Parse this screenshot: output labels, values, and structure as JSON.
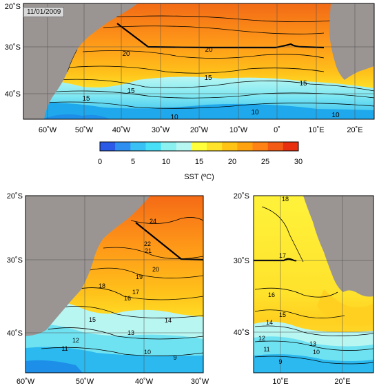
{
  "date_label": "11/01/2009",
  "colorbar": {
    "label": "SST (ºC)",
    "ticks": [
      "0",
      "5",
      "10",
      "15",
      "20",
      "25",
      "30"
    ],
    "colors": [
      "#2b5be6",
      "#2f8ff0",
      "#39c0f5",
      "#48e0f6",
      "#8af0f0",
      "#b6f7f2",
      "#ffff3c",
      "#ffe22a",
      "#ffc316",
      "#ffa210",
      "#ff8216",
      "#f25a16",
      "#e83010"
    ]
  },
  "panels": {
    "top": {
      "lat_labels": [
        "20˚S",
        "30˚S",
        "40˚S"
      ],
      "lon_labels": [
        "60˚W",
        "50˚W",
        "40˚W",
        "30˚W",
        "20˚W",
        "10˚W",
        "0˚",
        "10˚E",
        "20˚E"
      ],
      "contour_labels": [
        "20",
        "20",
        "15",
        "15",
        "15",
        "15",
        "10",
        "10",
        "10"
      ]
    },
    "bottom_left": {
      "lat_labels": [
        "20˚S",
        "30˚S",
        "40˚S"
      ],
      "lon_labels": [
        "60˚W",
        "50˚W",
        "40˚W",
        "30˚W"
      ],
      "contour_labels": [
        "24",
        "22",
        "21",
        "20",
        "19",
        "18",
        "17",
        "16",
        "15",
        "14",
        "13",
        "12",
        "11",
        "10",
        "9"
      ]
    },
    "bottom_right": {
      "lat_labels": [
        "20˚S",
        "30˚S",
        "40˚S"
      ],
      "lon_labels": [
        "10˚E",
        "20˚E"
      ],
      "contour_labels": [
        "18",
        "17",
        "16",
        "15",
        "14",
        "13",
        "12",
        "11",
        "10",
        "9"
      ]
    }
  },
  "colors": {
    "land": "#9a9593",
    "frame": "#000000",
    "grid": "#4a4a4a"
  }
}
